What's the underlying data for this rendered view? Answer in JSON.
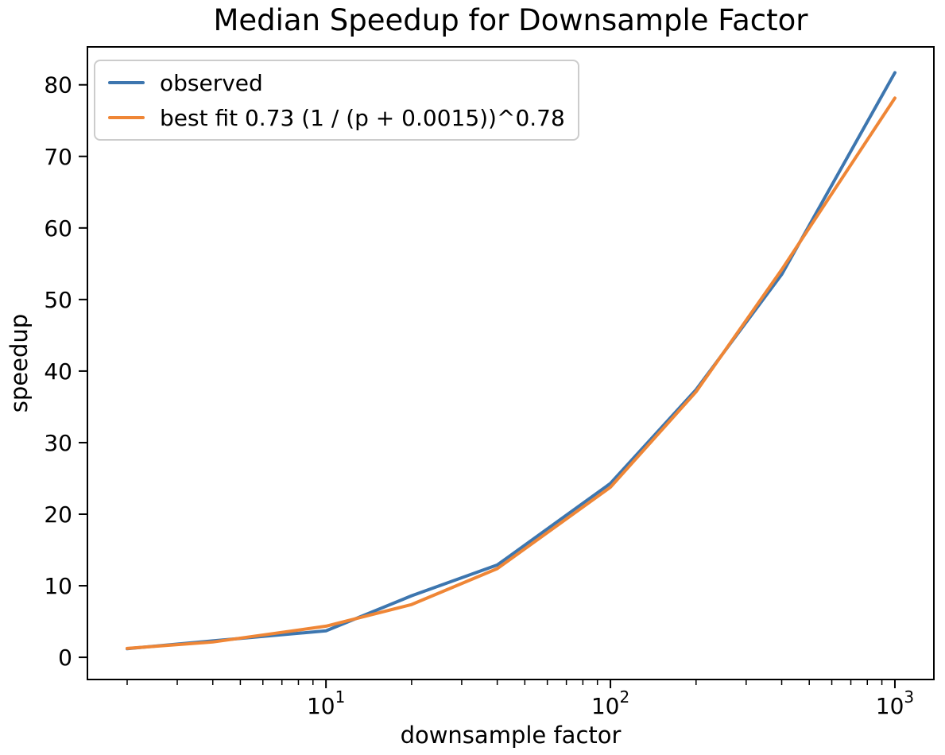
{
  "figure": {
    "background": "#ffffff",
    "spine_color": "#000000",
    "text_color": "#000000"
  },
  "chart_data": {
    "type": "line",
    "title": "Median Speedup for Downsample Factor",
    "xlabel": "downsample factor",
    "ylabel": "speedup",
    "x_scale": "log",
    "grid": false,
    "legend_position": "upper left",
    "xlim": [
      1.45,
      1371
    ],
    "ylim": [
      -3.1,
      85.3
    ],
    "x_ticks": [
      {
        "value": 10,
        "base": "10",
        "exp": "1"
      },
      {
        "value": 100,
        "base": "10",
        "exp": "2"
      },
      {
        "value": 1000,
        "base": "10",
        "exp": "3"
      }
    ],
    "x_minor_ticks": [
      2,
      3,
      4,
      5,
      6,
      7,
      8,
      9,
      20,
      30,
      40,
      50,
      60,
      70,
      80,
      90,
      200,
      300,
      400,
      500,
      600,
      700,
      800,
      900
    ],
    "y_ticks": [
      0,
      10,
      20,
      30,
      40,
      50,
      60,
      70,
      80
    ],
    "x": [
      2,
      4,
      10,
      20,
      40,
      100,
      200,
      400,
      1000
    ],
    "series": [
      {
        "name": "observed",
        "color": "#3d76af",
        "values": [
          1.2,
          2.3,
          3.7,
          8.6,
          12.9,
          24.3,
          37.4,
          53.5,
          81.7
        ]
      },
      {
        "name": "best fit 0.73 (1 / (p + 0.0015))^0.78",
        "color": "#ef8636",
        "values": [
          1.25,
          2.14,
          4.35,
          7.38,
          12.39,
          23.77,
          37.11,
          54.17,
          78.15
        ]
      }
    ]
  }
}
